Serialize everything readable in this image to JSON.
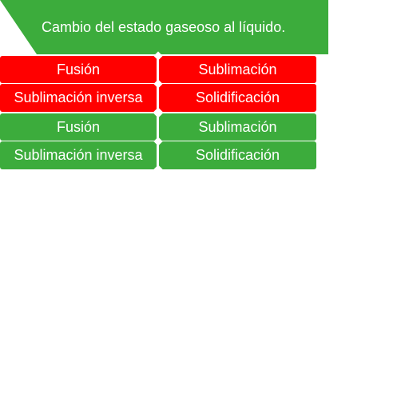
{
  "question": {
    "text": "Cambio del estado gaseoso al líquido."
  },
  "option_groups": [
    {
      "color": "#ff0000",
      "options": [
        "Fusión",
        "Sublimación",
        "Sublimación inversa",
        "Solidificación"
      ]
    },
    {
      "color": "#3cac3c",
      "options": [
        "Fusión",
        "Sublimación",
        "Sublimación inversa",
        "Solidificación"
      ]
    }
  ]
}
